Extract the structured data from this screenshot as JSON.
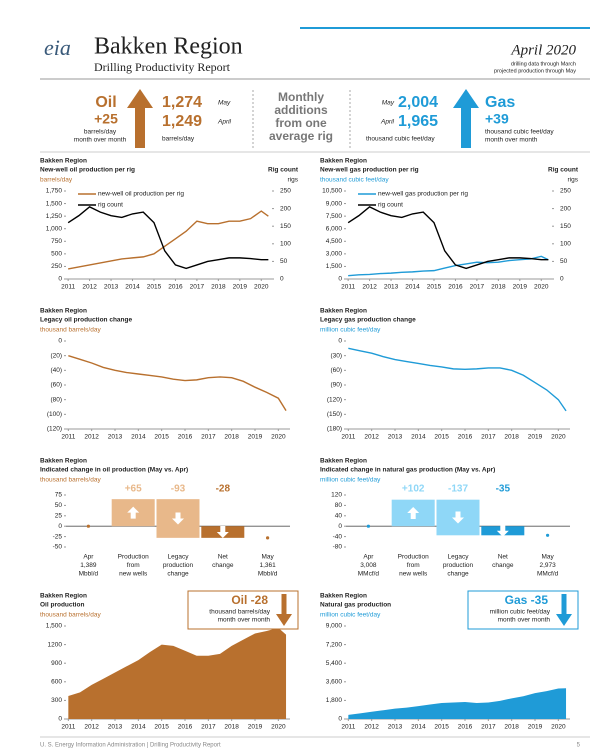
{
  "header": {
    "logo": "eia",
    "title": "Bakken Region",
    "subtitle": "Drilling Productivity Report",
    "date": "April 2020",
    "notes": [
      "drilling data through March",
      "projected production through May"
    ]
  },
  "summary": {
    "oil": {
      "label": "Oil",
      "change": "+25",
      "change_unit": [
        "barrels/day",
        "month over month"
      ],
      "rows": [
        {
          "value": "1,274",
          "month": "May"
        },
        {
          "value": "1,249",
          "month": "April"
        }
      ],
      "unit": "barrels/day"
    },
    "center": [
      "Monthly",
      "additions",
      "from one",
      "average rig"
    ],
    "gas": {
      "label": "Gas",
      "change": "+39",
      "change_unit": [
        "thousand cubic feet/day",
        "month over month"
      ],
      "rows": [
        {
          "value": "2,004",
          "month": "May"
        },
        {
          "value": "1,965",
          "month": "April"
        }
      ],
      "unit": "thousand cubic feet/day"
    }
  },
  "chart_data": [
    {
      "type": "line",
      "region": "Bakken Region",
      "title": "New-well oil production per rig",
      "ylabel": "barrels/day",
      "y2title": "Rig count",
      "y2label": "rigs",
      "x": [
        2011,
        2011.5,
        2012,
        2012.5,
        2013,
        2013.5,
        2014,
        2014.5,
        2015,
        2015.5,
        2016,
        2016.5,
        2017,
        2017.5,
        2018,
        2018.5,
        2019,
        2019.5,
        2020,
        2020.33
      ],
      "series": [
        {
          "name": "new-well oil production per rig",
          "color": "#b8702e",
          "values": [
            200,
            240,
            280,
            320,
            360,
            400,
            420,
            440,
            500,
            650,
            800,
            950,
            1150,
            1100,
            1100,
            1150,
            1150,
            1200,
            1350,
            1250
          ]
        },
        {
          "name": "rig count",
          "color": "#000000",
          "axis": "y2",
          "values": [
            160,
            180,
            205,
            190,
            180,
            175,
            185,
            190,
            160,
            80,
            40,
            30,
            40,
            50,
            55,
            60,
            60,
            58,
            55,
            55
          ]
        }
      ],
      "xlim": [
        2010.9,
        2020.5
      ],
      "xticks": [
        2011,
        2012,
        2013,
        2014,
        2015,
        2016,
        2017,
        2018,
        2019,
        2020
      ],
      "ylim": [
        0,
        1750
      ],
      "yticks": [
        0,
        250,
        500,
        750,
        {
          "value": 1000,
          "label": "1,000"
        },
        {
          "value": 1250,
          "label": "1,250"
        },
        {
          "value": 1500,
          "label": "1,500"
        },
        {
          "value": 1750,
          "label": "1,750"
        }
      ],
      "y2lim": [
        0,
        250
      ],
      "y2ticks": [
        0,
        50,
        100,
        150,
        200,
        250
      ]
    },
    {
      "type": "line",
      "region": "Bakken Region",
      "title": "New-well gas production per rig",
      "ylabel": "thousand cubic feet/day",
      "y2title": "Rig count",
      "y2label": "rigs",
      "x": [
        2011,
        2011.5,
        2012,
        2012.5,
        2013,
        2013.5,
        2014,
        2014.5,
        2015,
        2015.5,
        2016,
        2016.5,
        2017,
        2017.5,
        2018,
        2018.5,
        2019,
        2019.5,
        2020,
        2020.33
      ],
      "series": [
        {
          "name": "new-well gas production per rig",
          "color": "#1f9bd7",
          "values": [
            400,
            500,
            550,
            650,
            700,
            800,
            850,
            950,
            1000,
            1300,
            1600,
            1800,
            2000,
            1950,
            2000,
            2200,
            2300,
            2400,
            2700,
            2300
          ]
        },
        {
          "name": "rig count",
          "color": "#000000",
          "axis": "y2",
          "values": [
            160,
            180,
            205,
            190,
            180,
            175,
            185,
            190,
            160,
            80,
            40,
            30,
            40,
            50,
            55,
            60,
            60,
            58,
            55,
            55
          ]
        }
      ],
      "xlim": [
        2010.9,
        2020.5
      ],
      "xticks": [
        2011,
        2012,
        2013,
        2014,
        2015,
        2016,
        2017,
        2018,
        2019,
        2020
      ],
      "ylim": [
        0,
        10500
      ],
      "yticks": [
        0,
        {
          "value": 1500,
          "label": "1,500"
        },
        {
          "value": 3000,
          "label": "3,000"
        },
        {
          "value": 4500,
          "label": "4,500"
        },
        {
          "value": 6000,
          "label": "6,000"
        },
        {
          "value": 7500,
          "label": "7,500"
        },
        {
          "value": 9000,
          "label": "9,000"
        },
        {
          "value": 10500,
          "label": "10,500"
        }
      ],
      "y2lim": [
        0,
        250
      ],
      "y2ticks": [
        0,
        50,
        100,
        150,
        200,
        250
      ]
    },
    {
      "type": "line",
      "region": "Bakken Region",
      "title": "Legacy oil production change",
      "ylabel": "thousand barrels/day",
      "x": [
        2011,
        2011.5,
        2012,
        2012.5,
        2013,
        2013.5,
        2014,
        2014.5,
        2015,
        2015.5,
        2016,
        2016.5,
        2017,
        2017.5,
        2018,
        2018.5,
        2019,
        2019.5,
        2020,
        2020.33
      ],
      "series": [
        {
          "color": "#b8702e",
          "values": [
            -20,
            -25,
            -30,
            -36,
            -40,
            -43,
            -45,
            -47,
            -49,
            -52,
            -54,
            -53,
            -50,
            -49,
            -50,
            -55,
            -63,
            -70,
            -78,
            -95
          ]
        }
      ],
      "xlim": [
        2010.9,
        2020.5
      ],
      "xticks": [
        2011,
        2012,
        2013,
        2014,
        2015,
        2016,
        2017,
        2018,
        2019,
        2020
      ],
      "ylim": [
        -120,
        0
      ],
      "yticks": [
        0,
        {
          "value": -20,
          "label": "(20)"
        },
        {
          "value": -40,
          "label": "(40)"
        },
        {
          "value": -60,
          "label": "(60)"
        },
        {
          "value": -80,
          "label": "(80)"
        },
        {
          "value": -100,
          "label": "(100)"
        },
        {
          "value": -120,
          "label": "(120)"
        }
      ]
    },
    {
      "type": "line",
      "region": "Bakken Region",
      "title": "Legacy gas production change",
      "ylabel": "million cubic feet/day",
      "x": [
        2011,
        2011.5,
        2012,
        2012.5,
        2013,
        2013.5,
        2014,
        2014.5,
        2015,
        2015.5,
        2016,
        2016.5,
        2017,
        2017.5,
        2018,
        2018.5,
        2019,
        2019.5,
        2020,
        2020.33
      ],
      "series": [
        {
          "color": "#1f9bd7",
          "values": [
            -15,
            -20,
            -25,
            -32,
            -38,
            -42,
            -46,
            -50,
            -53,
            -57,
            -58,
            -57,
            -55,
            -55,
            -60,
            -70,
            -85,
            -100,
            -120,
            -143
          ]
        }
      ],
      "xlim": [
        2010.9,
        2020.5
      ],
      "xticks": [
        2011,
        2012,
        2013,
        2014,
        2015,
        2016,
        2017,
        2018,
        2019,
        2020
      ],
      "ylim": [
        -180,
        0
      ],
      "yticks": [
        0,
        {
          "value": -30,
          "label": "(30)"
        },
        {
          "value": -60,
          "label": "(60)"
        },
        {
          "value": -90,
          "label": "(90)"
        },
        {
          "value": -120,
          "label": "(120)"
        },
        {
          "value": -150,
          "label": "(150)"
        },
        {
          "value": -180,
          "label": "(180)"
        }
      ]
    },
    {
      "type": "bridge",
      "region": "Bakken Region",
      "title": "Indicated change in oil production (May vs. Apr)",
      "ylabel": "thousand barrels/day",
      "categories": [
        [
          "Apr",
          "1,389",
          "Mbbl/d"
        ],
        [
          "Production",
          "from",
          "new wells"
        ],
        [
          "Legacy",
          "production",
          "change"
        ],
        [
          "Net",
          "change"
        ],
        [
          "May",
          "1,361",
          "Mbbl/d"
        ]
      ],
      "values": [
        null,
        65,
        -93,
        -28,
        null
      ],
      "value_labels": [
        null,
        "+65",
        "-93",
        "-28",
        null
      ],
      "color": "#e8b88a",
      "net_color": "#b8702e",
      "ylim": [
        -50,
        75
      ],
      "yticks": [
        75,
        50,
        25,
        0,
        -25,
        -50
      ]
    },
    {
      "type": "bridge",
      "region": "Bakken Region",
      "title": "Indicated change in natural gas production (May vs. Apr)",
      "ylabel": "million cubic feet/day",
      "categories": [
        [
          "Apr",
          "3,008",
          "MMcf/d"
        ],
        [
          "Production",
          "from",
          "new wells"
        ],
        [
          "Legacy",
          "production",
          "change"
        ],
        [
          "Net",
          "change"
        ],
        [
          "May",
          "2,973",
          "MMcf/d"
        ]
      ],
      "values": [
        null,
        102,
        -137,
        -35,
        null
      ],
      "value_labels": [
        null,
        "+102",
        "-137",
        "-35",
        null
      ],
      "color": "#8fd7f7",
      "net_color": "#1f9bd7",
      "ylim": [
        -80,
        120
      ],
      "yticks": [
        120,
        80,
        40,
        0,
        -40,
        -80
      ]
    },
    {
      "type": "area",
      "region": "Bakken Region",
      "title": "Oil production",
      "ylabel": "thousand barrels/day",
      "color": "#b8702e",
      "callout": {
        "title": "Oil -28",
        "text": [
          "thousand barrels/day",
          "month over month"
        ]
      },
      "x": [
        2011,
        2011.5,
        2012,
        2012.5,
        2013,
        2013.5,
        2014,
        2014.5,
        2015,
        2015.5,
        2016,
        2016.5,
        2017,
        2017.5,
        2018,
        2018.5,
        2019,
        2019.5,
        2020,
        2020.33
      ],
      "values": [
        370,
        430,
        550,
        650,
        750,
        850,
        950,
        1080,
        1200,
        1180,
        1100,
        1020,
        1020,
        1050,
        1180,
        1280,
        1380,
        1420,
        1470,
        1361
      ],
      "xlim": [
        2010.9,
        2020.5
      ],
      "xticks": [
        2011,
        2012,
        2013,
        2014,
        2015,
        2016,
        2017,
        2018,
        2019,
        2020
      ],
      "ylim": [
        0,
        1500
      ],
      "yticks": [
        0,
        300,
        600,
        900,
        1200,
        {
          "value": 1500,
          "label": "1,500"
        }
      ]
    },
    {
      "type": "area",
      "region": "Bakken Region",
      "title": "Natural gas production",
      "ylabel": "million cubic feet/day",
      "color": "#1f9bd7",
      "callout": {
        "title": "Gas -35",
        "text": [
          "million cubic feet/day",
          "month over month"
        ]
      },
      "x": [
        2011,
        2011.5,
        2012,
        2012.5,
        2013,
        2013.5,
        2014,
        2014.5,
        2015,
        2015.5,
        2016,
        2016.5,
        2017,
        2017.5,
        2018,
        2018.5,
        2019,
        2019.5,
        2020,
        2020.33
      ],
      "values": [
        400,
        550,
        700,
        850,
        1000,
        1100,
        1250,
        1400,
        1550,
        1600,
        1650,
        1550,
        1600,
        1750,
        2000,
        2200,
        2500,
        2700,
        2950,
        2973
      ],
      "xlim": [
        2010.9,
        2020.5
      ],
      "xticks": [
        2011,
        2012,
        2013,
        2014,
        2015,
        2016,
        2017,
        2018,
        2019,
        2020
      ],
      "ylim": [
        0,
        9000
      ],
      "yticks": [
        0,
        {
          "value": 1800,
          "label": "1,800"
        },
        {
          "value": 3600,
          "label": "3,600"
        },
        {
          "value": 5400,
          "label": "5,400"
        },
        {
          "value": 7200,
          "label": "7,200"
        },
        {
          "value": 9000,
          "label": "9,000"
        }
      ]
    }
  ],
  "footer": {
    "source": "U. S. Energy Information Administration | Drilling Productivity Report",
    "page": "5"
  }
}
